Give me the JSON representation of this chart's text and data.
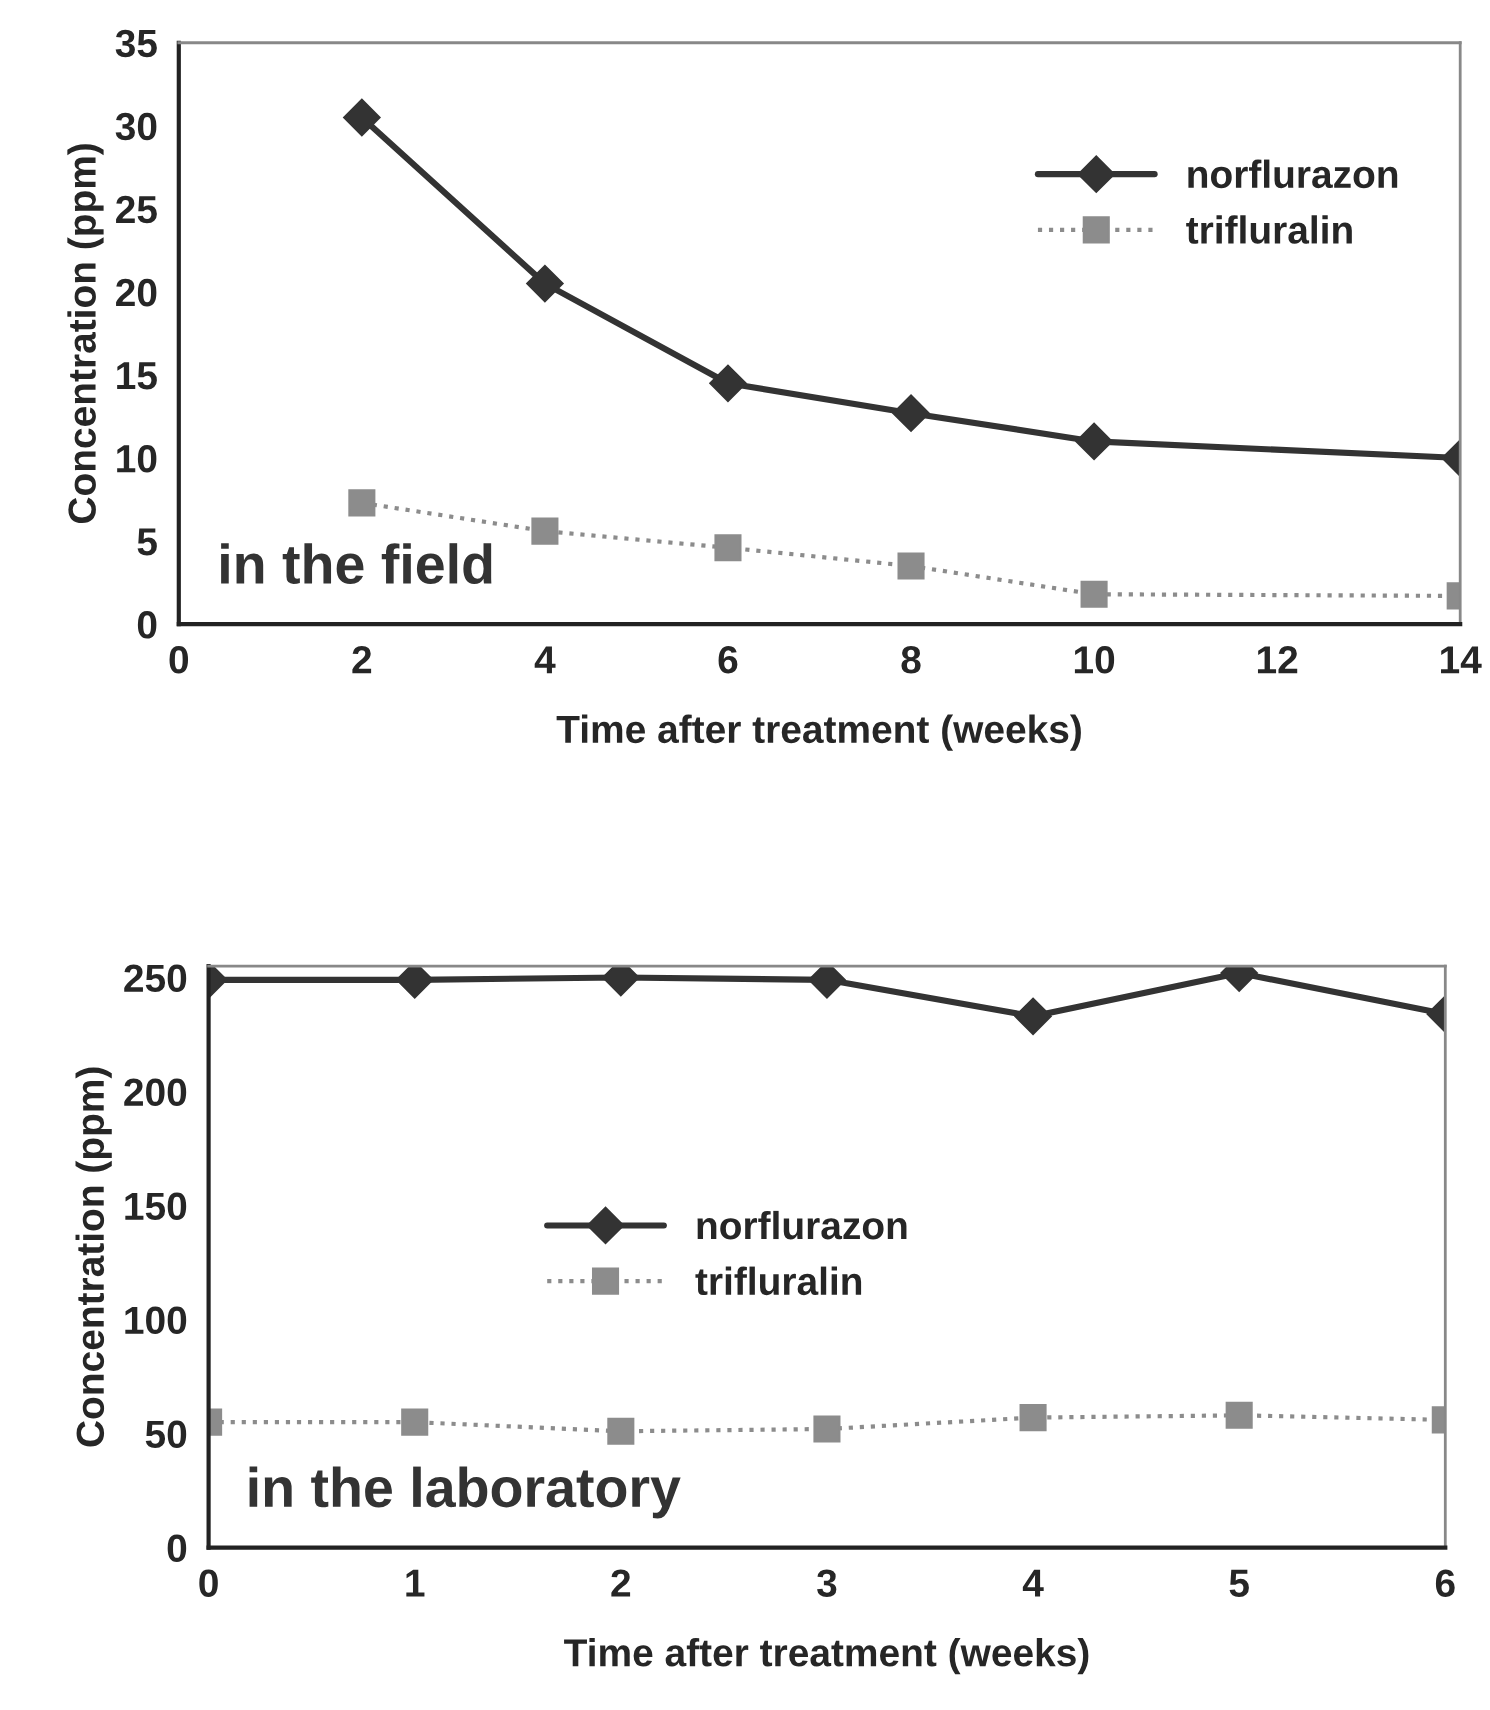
{
  "chart_data": [
    {
      "type": "line",
      "xlabel": "Time after treatment (weeks)",
      "ylabel": "Concentration (ppm)",
      "annotations": [
        "in the field"
      ],
      "x": [
        2,
        4,
        6,
        8,
        10,
        14
      ],
      "xlim": [
        0,
        14
      ],
      "xticks": [
        0,
        2,
        4,
        6,
        8,
        10,
        12,
        14
      ],
      "ylim": [
        0,
        35
      ],
      "yticks": [
        0,
        5,
        10,
        15,
        20,
        25,
        30,
        35
      ],
      "grid": false,
      "legend": "right",
      "series": [
        {
          "name": "norflurazon",
          "color": "#333333",
          "marker": "diamond",
          "line_style": "solid",
          "values": [
            30.5,
            20.5,
            14.5,
            12.7,
            11.0,
            10.0
          ]
        },
        {
          "name": "trifluralin",
          "color": "#8c8c8c",
          "marker": "square",
          "line_style": "dotted",
          "values": [
            7.3,
            5.6,
            4.6,
            3.5,
            1.8,
            1.7
          ]
        }
      ]
    },
    {
      "type": "line",
      "xlabel": "Time after treatment (weeks)",
      "ylabel": "Concentration (ppm)",
      "annotations": [
        "in the laboratory"
      ],
      "x": [
        0,
        1,
        2,
        3,
        4,
        5,
        6
      ],
      "xlim": [
        0,
        6
      ],
      "xticks": [
        0,
        1,
        2,
        3,
        4,
        5,
        6
      ],
      "ylim": [
        0,
        255
      ],
      "yticks": [
        0,
        50,
        100,
        150,
        200,
        250
      ],
      "grid": false,
      "legend": "center",
      "series": [
        {
          "name": "norflurazon",
          "color": "#333333",
          "marker": "diamond",
          "line_style": "solid",
          "values": [
            249,
            249,
            250,
            249,
            233,
            252,
            234
          ]
        },
        {
          "name": "trifluralin",
          "color": "#8c8c8c",
          "marker": "square",
          "line_style": "dotted",
          "values": [
            55,
            55,
            51,
            52,
            57,
            58,
            56
          ]
        }
      ]
    }
  ]
}
